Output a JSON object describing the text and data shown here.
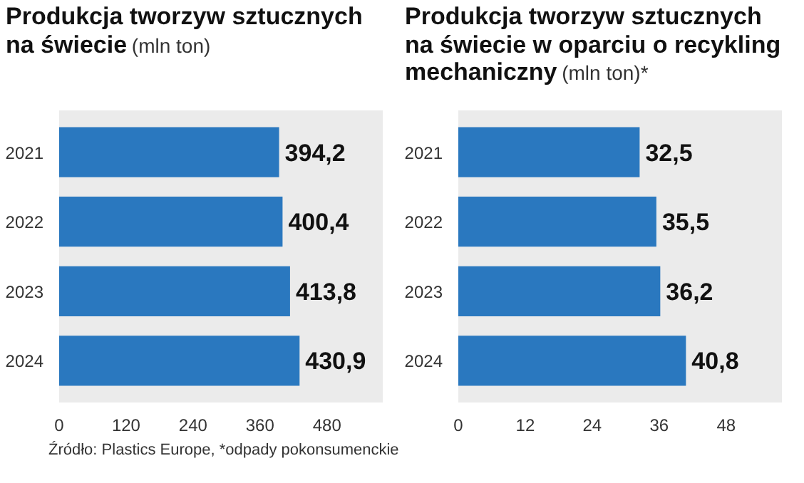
{
  "chart_data": [
    {
      "type": "bar",
      "orientation": "horizontal",
      "title": "Produkcja tworzyw sztucznych na świecie",
      "subtitle": "(mln ton)",
      "categories": [
        "2021",
        "2022",
        "2023",
        "2024"
      ],
      "values": [
        394.2,
        400.4,
        413.8,
        430.9
      ],
      "value_labels": [
        "394,2",
        "400,4",
        "413,8",
        "430,9"
      ],
      "color": "#2a78bf",
      "xlim": [
        0,
        580
      ],
      "xticks": [
        0,
        120,
        240,
        360,
        480
      ],
      "grid": false,
      "annotations": [
        "Źródło: Plastics Europe, *odpady pokonsumenckie"
      ]
    },
    {
      "type": "bar",
      "orientation": "horizontal",
      "title": "Produkcja tworzyw sztucznych na świecie w oparciu o recykling mechaniczny",
      "subtitle": "(mln ton)*",
      "categories": [
        "2021",
        "2022",
        "2023",
        "2024"
      ],
      "values": [
        32.5,
        35.5,
        36.2,
        40.8
      ],
      "value_labels": [
        "32,5",
        "35,5",
        "36,2",
        "40,8"
      ],
      "color": "#2a78bf",
      "xlim": [
        0,
        58
      ],
      "xticks": [
        0,
        12,
        24,
        36,
        48
      ],
      "grid": false
    }
  ]
}
